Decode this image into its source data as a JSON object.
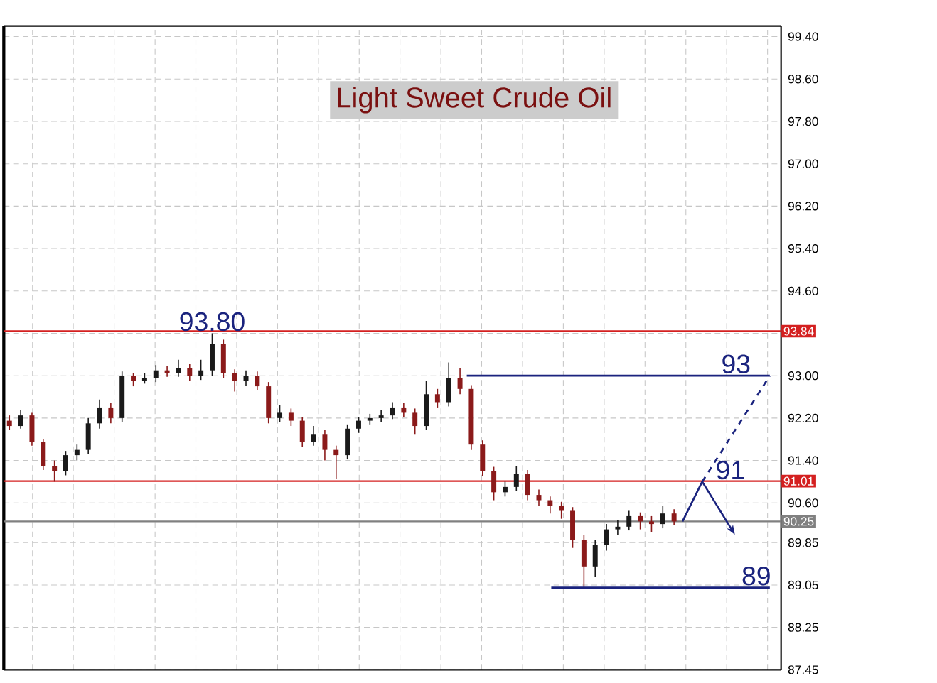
{
  "chart_data": {
    "type": "candlestick",
    "title": "Light Sweet Crude Oil",
    "categories": [
      null,
      null,
      null,
      null,
      null,
      null,
      null,
      null,
      null,
      null,
      null,
      null,
      null,
      null,
      null,
      null,
      null,
      null,
      null,
      null,
      null,
      null,
      null,
      null,
      null,
      null,
      null,
      null,
      null,
      null,
      null,
      null,
      null,
      null,
      null,
      null,
      null,
      null,
      null,
      null,
      null,
      null,
      null,
      null,
      null,
      null,
      null,
      null,
      null,
      null,
      null,
      null,
      null,
      null,
      null,
      null,
      null,
      null,
      null,
      null,
      null,
      null,
      null,
      null,
      null,
      null,
      null,
      null,
      null
    ],
    "ohlc": [
      [
        92.15,
        92.25,
        91.98,
        92.05
      ],
      [
        92.05,
        92.35,
        92.0,
        92.25
      ],
      [
        92.25,
        92.3,
        91.68,
        91.75
      ],
      [
        91.75,
        91.8,
        91.22,
        91.3
      ],
      [
        91.3,
        91.4,
        91.0,
        91.2
      ],
      [
        91.2,
        91.58,
        91.12,
        91.5
      ],
      [
        91.5,
        91.7,
        91.4,
        91.6
      ],
      [
        91.6,
        92.2,
        91.52,
        92.1
      ],
      [
        92.1,
        92.55,
        92.0,
        92.4
      ],
      [
        92.4,
        92.48,
        92.1,
        92.2
      ],
      [
        92.2,
        93.08,
        92.12,
        93.0
      ],
      [
        93.0,
        93.05,
        92.8,
        92.9
      ],
      [
        92.9,
        93.05,
        92.85,
        92.95
      ],
      [
        92.95,
        93.2,
        92.88,
        93.1
      ],
      [
        93.1,
        93.18,
        92.98,
        93.05
      ],
      [
        93.05,
        93.3,
        92.98,
        93.15
      ],
      [
        93.15,
        93.22,
        92.9,
        93.0
      ],
      [
        93.0,
        93.3,
        92.92,
        93.1
      ],
      [
        93.1,
        93.8,
        93.0,
        93.6
      ],
      [
        93.6,
        93.68,
        92.95,
        93.05
      ],
      [
        93.05,
        93.12,
        92.7,
        92.9
      ],
      [
        92.9,
        93.1,
        92.8,
        93.0
      ],
      [
        93.0,
        93.08,
        92.72,
        92.8
      ],
      [
        92.8,
        92.88,
        92.1,
        92.2
      ],
      [
        92.2,
        92.45,
        92.12,
        92.3
      ],
      [
        92.3,
        92.38,
        92.05,
        92.15
      ],
      [
        92.15,
        92.22,
        91.65,
        91.75
      ],
      [
        91.75,
        92.05,
        91.68,
        91.9
      ],
      [
        91.9,
        91.98,
        91.4,
        91.6
      ],
      [
        91.6,
        91.68,
        91.05,
        91.5
      ],
      [
        91.5,
        92.08,
        91.42,
        92.0
      ],
      [
        92.0,
        92.22,
        91.92,
        92.15
      ],
      [
        92.15,
        92.28,
        92.08,
        92.2
      ],
      [
        92.2,
        92.35,
        92.12,
        92.25
      ],
      [
        92.25,
        92.5,
        92.18,
        92.4
      ],
      [
        92.4,
        92.48,
        92.22,
        92.3
      ],
      [
        92.3,
        92.38,
        91.9,
        92.05
      ],
      [
        92.05,
        92.9,
        91.98,
        92.65
      ],
      [
        92.65,
        92.75,
        92.4,
        92.5
      ],
      [
        92.5,
        93.25,
        92.42,
        92.95
      ],
      [
        92.95,
        93.15,
        92.65,
        92.75
      ],
      [
        92.75,
        92.82,
        91.6,
        91.7
      ],
      [
        91.7,
        91.78,
        91.1,
        91.2
      ],
      [
        91.2,
        91.28,
        90.65,
        90.8
      ],
      [
        90.8,
        91.0,
        90.72,
        90.9
      ],
      [
        90.9,
        91.3,
        90.82,
        91.15
      ],
      [
        91.15,
        91.22,
        90.65,
        90.75
      ],
      [
        90.75,
        90.85,
        90.55,
        90.65
      ],
      [
        90.65,
        90.72,
        90.4,
        90.55
      ],
      [
        90.55,
        90.62,
        90.3,
        90.45
      ],
      [
        90.45,
        90.52,
        89.75,
        89.9
      ],
      [
        89.9,
        90.0,
        89.0,
        89.4
      ],
      [
        89.4,
        89.9,
        89.2,
        89.8
      ],
      [
        89.8,
        90.2,
        89.7,
        90.1
      ],
      [
        90.1,
        90.28,
        90.0,
        90.15
      ],
      [
        90.15,
        90.45,
        90.08,
        90.35
      ],
      [
        90.35,
        90.42,
        90.1,
        90.25
      ],
      [
        90.25,
        90.35,
        90.05,
        90.2
      ],
      [
        90.2,
        90.55,
        90.12,
        90.4
      ],
      [
        90.4,
        90.48,
        90.18,
        90.25
      ],
      null,
      null,
      null,
      null,
      null,
      null,
      null,
      null,
      null
    ],
    "colors": [
      "#8b1a1a",
      "#1a1a1a",
      "#8b1a1a",
      "#8b1a1a",
      "#8b1a1a",
      "#1a1a1a",
      "#1a1a1a",
      "#1a1a1a",
      "#1a1a1a",
      "#8b1a1a",
      "#1a1a1a",
      "#8b1a1a",
      "#1a1a1a",
      "#1a1a1a",
      "#8b1a1a",
      "#1a1a1a",
      "#8b1a1a",
      "#1a1a1a",
      "#1a1a1a",
      "#8b1a1a",
      "#8b1a1a",
      "#1a1a1a",
      "#8b1a1a",
      "#8b1a1a",
      "#1a1a1a",
      "#8b1a1a",
      "#8b1a1a",
      "#1a1a1a",
      "#8b1a1a",
      "#8b1a1a",
      "#1a1a1a",
      "#1a1a1a",
      "#1a1a1a",
      "#1a1a1a",
      "#1a1a1a",
      "#8b1a1a",
      "#8b1a1a",
      "#1a1a1a",
      "#8b1a1a",
      "#1a1a1a",
      "#8b1a1a",
      "#8b1a1a",
      "#8b1a1a",
      "#8b1a1a",
      "#1a1a1a",
      "#1a1a1a",
      "#8b1a1a",
      "#8b1a1a",
      "#8b1a1a",
      "#8b1a1a",
      "#8b1a1a",
      "#8b1a1a",
      "#1a1a1a",
      "#1a1a1a",
      "#1a1a1a",
      "#1a1a1a",
      "#8b1a1a",
      "#8b1a1a",
      "#1a1a1a",
      "#8b1a1a",
      null,
      null,
      null,
      null,
      null,
      null,
      null,
      null,
      null
    ],
    "ylim": [
      87.45,
      99.6
    ],
    "yticks": [
      {
        "value": 87.45,
        "label": "87.45"
      },
      {
        "value": 88.25,
        "label": "88.25"
      },
      {
        "value": 89.05,
        "label": "89.05"
      },
      {
        "value": 89.85,
        "label": "89.85"
      },
      {
        "value": 90.6,
        "label": "90.60"
      },
      {
        "value": 91.4,
        "label": "91.40"
      },
      {
        "value": 92.2,
        "label": "92.20"
      },
      {
        "value": 93.0,
        "label": "93.00"
      },
      {
        "value": 93.8,
        "label": null
      },
      {
        "value": 94.6,
        "label": "94.60"
      },
      {
        "value": 95.4,
        "label": "95.40"
      },
      {
        "value": 96.2,
        "label": "96.20"
      },
      {
        "value": 97.0,
        "label": "97.00"
      },
      {
        "value": 97.8,
        "label": "97.80"
      },
      {
        "value": 98.6,
        "label": "98.60"
      },
      {
        "value": 99.4,
        "label": "99.40"
      }
    ],
    "tick_labels": "y",
    "grid": true,
    "ref_lines": [
      {
        "axis": "y",
        "value": 93.84,
        "label": "93.84",
        "color": "#d42020"
      },
      {
        "axis": "y",
        "value": 91.01,
        "label": "91.01",
        "color": "#d42020"
      },
      {
        "axis": "y",
        "value": 90.25,
        "label": "90.25",
        "color": "#808080"
      }
    ],
    "annotations": [
      {
        "text": "93.80",
        "y": 93.8
      },
      "93",
      {
        "text": "91",
        "y": 91.0
      },
      "89"
    ]
  }
}
